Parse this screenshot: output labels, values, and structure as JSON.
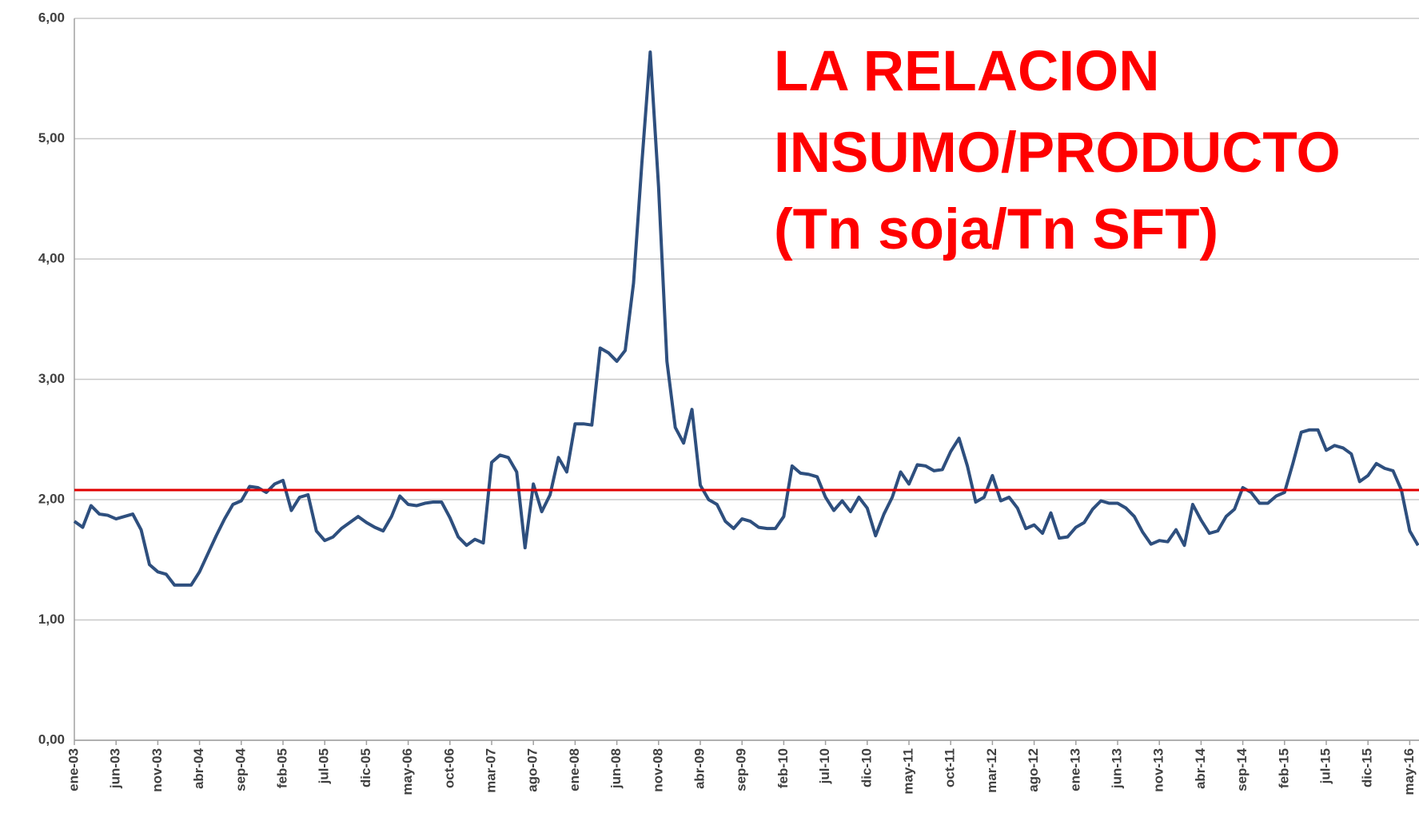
{
  "chart_data": {
    "type": "line",
    "annotation": [
      "LA RELACION",
      "INSUMO/PRODUCTO",
      "(Tn soja/Tn SFT)"
    ],
    "annotation_color": "#ff0000",
    "categories": [
      "ene-03",
      null,
      null,
      null,
      null,
      "jun-03",
      null,
      null,
      null,
      null,
      "nov-03",
      null,
      null,
      null,
      null,
      "abr-04",
      null,
      null,
      null,
      null,
      "sep-04",
      null,
      null,
      null,
      null,
      "feb-05",
      null,
      null,
      null,
      null,
      "jul-05",
      null,
      null,
      null,
      null,
      "dic-05",
      null,
      null,
      null,
      null,
      "may-06",
      null,
      null,
      null,
      null,
      "oct-06",
      null,
      null,
      null,
      null,
      "mar-07",
      null,
      null,
      null,
      null,
      "ago-07",
      null,
      null,
      null,
      null,
      "ene-08",
      null,
      null,
      null,
      null,
      "jun-08",
      null,
      null,
      null,
      null,
      "nov-08",
      null,
      null,
      null,
      null,
      "abr-09",
      null,
      null,
      null,
      null,
      "sep-09",
      null,
      null,
      null,
      null,
      "feb-10",
      null,
      null,
      null,
      null,
      "jul-10",
      null,
      null,
      null,
      null,
      "dic-10",
      null,
      null,
      null,
      null,
      "may-11",
      null,
      null,
      null,
      null,
      "oct-11",
      null,
      null,
      null,
      null,
      "mar-12",
      null,
      null,
      null,
      null,
      "ago-12",
      null,
      null,
      null,
      null,
      "ene-13",
      null,
      null,
      null,
      null,
      "jun-13",
      null,
      null,
      null,
      null,
      "nov-13",
      null,
      null,
      null,
      null,
      "abr-14",
      null,
      null,
      null,
      null,
      "sep-14",
      null,
      null,
      null,
      null,
      "feb-15",
      null,
      null,
      null,
      null,
      "jul-15",
      null,
      null,
      null,
      null,
      "dic-15",
      null,
      null,
      null,
      null,
      "may-16",
      null
    ],
    "series": [
      {
        "color": "#2e4f7e",
        "values": [
          1.82,
          1.77,
          1.95,
          1.88,
          1.87,
          1.84,
          1.86,
          1.88,
          1.75,
          1.46,
          1.4,
          1.38,
          1.29,
          1.29,
          1.29,
          1.4,
          1.55,
          1.7,
          1.84,
          1.96,
          1.99,
          2.11,
          2.1,
          2.06,
          2.13,
          2.16,
          1.91,
          2.02,
          2.04,
          1.74,
          1.66,
          1.69,
          1.76,
          1.81,
          1.86,
          1.81,
          1.77,
          1.74,
          1.86,
          2.03,
          1.96,
          1.95,
          1.97,
          1.98,
          1.98,
          1.85,
          1.69,
          1.62,
          1.67,
          1.64,
          2.31,
          2.37,
          2.35,
          2.23,
          1.6,
          2.13,
          1.9,
          2.04,
          2.35,
          2.23,
          2.63,
          2.63,
          2.62,
          3.26,
          3.22,
          3.15,
          3.24,
          3.8,
          4.8,
          5.72,
          4.6,
          3.15,
          2.6,
          2.47,
          2.75,
          2.12,
          2.0,
          1.96,
          1.82,
          1.76,
          1.84,
          1.82,
          1.77,
          1.76,
          1.76,
          1.86,
          2.28,
          2.22,
          2.21,
          2.19,
          2.02,
          1.91,
          1.99,
          1.9,
          2.02,
          1.93,
          1.7,
          1.88,
          2.02,
          2.23,
          2.13,
          2.29,
          2.28,
          2.24,
          2.25,
          2.4,
          2.51,
          2.28,
          1.98,
          2.02,
          2.2,
          1.99,
          2.02,
          1.93,
          1.76,
          1.79,
          1.72,
          1.89,
          1.68,
          1.69,
          1.77,
          1.81,
          1.92,
          1.99,
          1.97,
          1.97,
          1.93,
          1.86,
          1.73,
          1.63,
          1.66,
          1.65,
          1.75,
          1.62,
          1.96,
          1.83,
          1.72,
          1.74,
          1.86,
          1.92,
          2.1,
          2.06,
          1.97,
          1.97,
          2.03,
          2.06,
          2.3,
          2.56,
          2.58,
          2.58,
          2.41,
          2.45,
          2.43,
          2.38,
          2.15,
          2.2,
          2.3,
          2.26,
          2.24,
          2.08,
          1.74,
          1.62
        ]
      }
    ],
    "reference_line": {
      "value": 2.08,
      "color": "#e00000"
    },
    "ylim": [
      0,
      6
    ],
    "yticks": [
      {
        "value": 0,
        "label": "0,00"
      },
      {
        "value": 1,
        "label": "1,00"
      },
      {
        "value": 2,
        "label": "2,00"
      },
      {
        "value": 3,
        "label": "3,00"
      },
      {
        "value": 4,
        "label": "4,00"
      },
      {
        "value": 5,
        "label": "5,00"
      },
      {
        "value": 6,
        "label": "6,00"
      }
    ],
    "grid": true
  }
}
